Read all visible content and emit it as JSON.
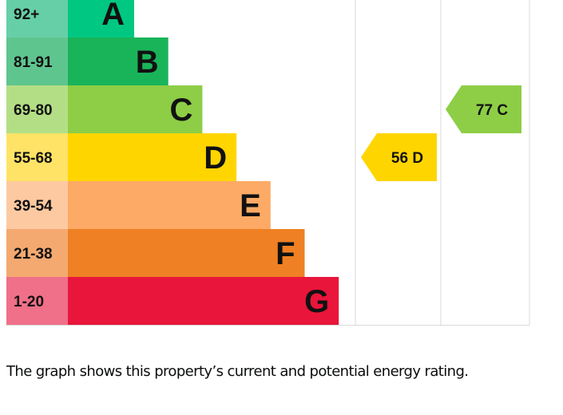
{
  "chart_data": {
    "type": "bar",
    "bands": [
      {
        "range": "92+",
        "letter": "A",
        "color": "#00c781",
        "tint": "#66cfa8"
      },
      {
        "range": "81-91",
        "letter": "B",
        "color": "#19b459",
        "tint": "#5fc58e"
      },
      {
        "range": "69-80",
        "letter": "C",
        "color": "#8dce46",
        "tint": "#b4de86"
      },
      {
        "range": "55-68",
        "letter": "D",
        "color": "#ffd500",
        "tint": "#ffe366"
      },
      {
        "range": "39-54",
        "letter": "E",
        "color": "#fcaa65",
        "tint": "#fdc9a0"
      },
      {
        "range": "21-38",
        "letter": "F",
        "color": "#ef8023",
        "tint": "#f4a970"
      },
      {
        "range": "1-20",
        "letter": "G",
        "color": "#e9153b",
        "tint": "#f07089"
      }
    ],
    "current": {
      "value": 56,
      "band": "D",
      "label": "56 D",
      "color": "#ffd500"
    },
    "potential": {
      "value": 77,
      "band": "C",
      "label": "77 C",
      "color": "#8dce46"
    }
  },
  "caption": "The graph shows this property’s current and potential energy rating."
}
